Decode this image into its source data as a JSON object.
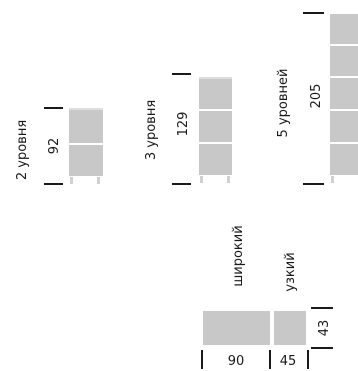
{
  "colors": {
    "panel": "#c8c8c8",
    "panel_edge": "#ffffff",
    "line": "#1a1a1a",
    "text": "#1a1a1a"
  },
  "cabinets": [
    {
      "levels_label": "2 уровня",
      "height": "92",
      "shelves": 2
    },
    {
      "levels_label": "3 уровня",
      "height": "129",
      "shelves": 3
    },
    {
      "levels_label": "5 уровней",
      "height": "205",
      "shelves": 5
    }
  ],
  "depth_options": {
    "wide_label": "широкий",
    "narrow_label": "узкий",
    "wide_width": "90",
    "narrow_width": "45",
    "depth": "43"
  }
}
